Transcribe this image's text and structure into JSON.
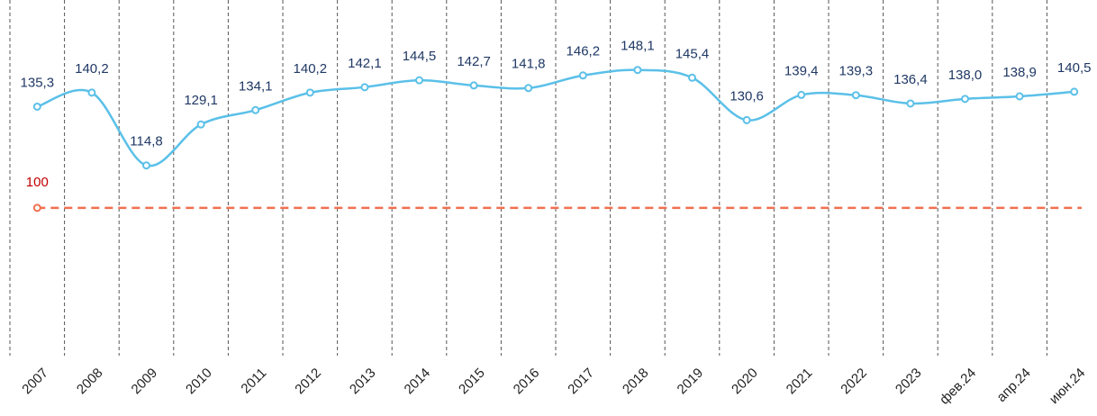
{
  "chart_data": {
    "type": "line",
    "categories": [
      "2007",
      "2008",
      "2009",
      "2010",
      "2011",
      "2012",
      "2013",
      "2014",
      "2015",
      "2016",
      "2017",
      "2018",
      "2019",
      "2020",
      "2021",
      "2022",
      "2023",
      "фев.24",
      "апр.24",
      "июн.24"
    ],
    "series": [
      {
        "color": "#5bc0e8",
        "values": [
          135.3,
          140.2,
          114.8,
          129.1,
          134.1,
          140.2,
          142.1,
          144.5,
          142.7,
          141.8,
          146.2,
          148.1,
          145.4,
          130.6,
          139.4,
          139.3,
          136.4,
          138.0,
          138.9,
          140.5
        ],
        "value_labels": [
          "135,3",
          "140,2",
          "114,8",
          "129,1",
          "134,1",
          "140,2",
          "142,1",
          "144,5",
          "142,7",
          "141,8",
          "146,2",
          "148,1",
          "145,4",
          "130,6",
          "139,4",
          "139,3",
          "136,4",
          "138,0",
          "138,9",
          "140,5"
        ]
      }
    ],
    "reference_line": {
      "value": 100,
      "color": "#f07050"
    },
    "ylim": [
      50,
      170
    ]
  }
}
